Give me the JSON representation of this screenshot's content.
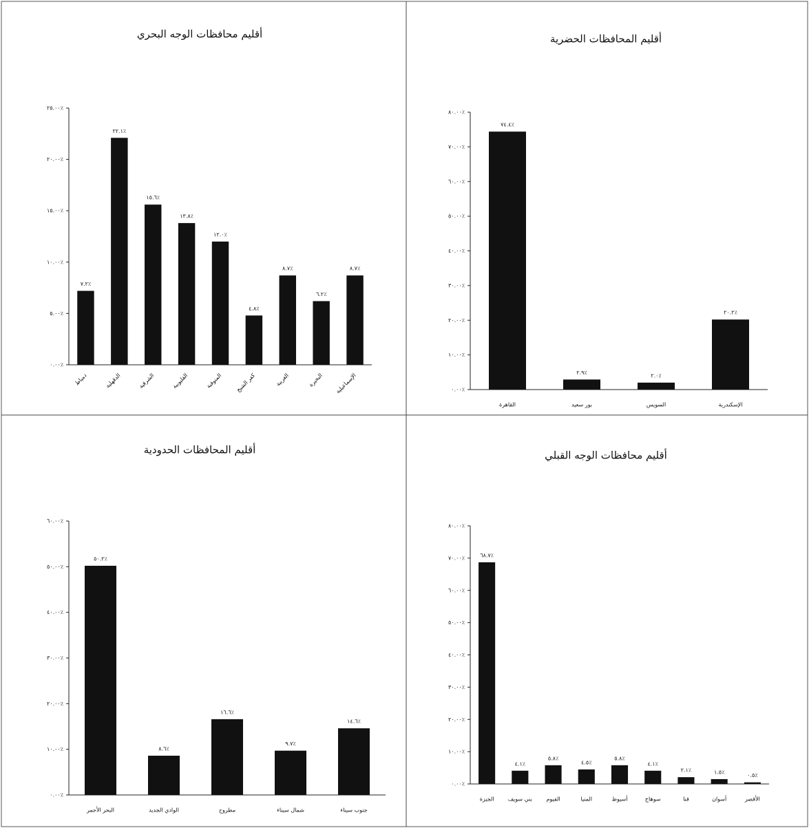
{
  "chart_data": [
    {
      "type": "bar",
      "title": "أقليم محافظات الوجه البحري",
      "categories": [
        "دمياط",
        "الدقهلية",
        "الشرقية",
        "القليوبية",
        "المنوفية",
        "كفر الشيخ",
        "الغربية",
        "البحيرة",
        "الإسماعيلية"
      ],
      "values": [
        7.2,
        22.1,
        15.6,
        13.8,
        12.0,
        4.8,
        8.7,
        6.2,
        8.7
      ],
      "value_labels": [
        "٧.٢٪",
        "٢٢.١٪",
        "١٥.٦٪",
        "١٣.٨٪",
        "١٢.٠٪",
        "٤.٨٪",
        "٨.٧٪",
        "٦.٢٪",
        "٨.٧٪"
      ],
      "color": "#111111",
      "ylim": [
        0,
        25
      ],
      "yticks": [
        {
          "value": 0,
          "label": "٠.٠٠٪"
        },
        {
          "value": 5,
          "label": "٥.٠٠٪"
        },
        {
          "value": 10,
          "label": "١٠.٠٠٪"
        },
        {
          "value": 15,
          "label": "١٥.٠٠٪"
        },
        {
          "value": 20,
          "label": "٢٠.٠٠٪"
        },
        {
          "value": 25,
          "label": "٢٥.٠٠٪"
        }
      ]
    },
    {
      "type": "bar",
      "title": "أقليم المحافظات الحضرية",
      "categories": [
        "القاهرة",
        "بور سعيد",
        "السويس",
        "الإسكندرية"
      ],
      "values": [
        74.4,
        2.9,
        2.0,
        20.2
      ],
      "value_labels": [
        "٧٤.٤٪",
        "٢.٩٪",
        "٢.٠٪",
        "٢٠.٢٪"
      ],
      "color": "#111111",
      "ylim": [
        0,
        80
      ],
      "yticks": [
        {
          "value": 0,
          "label": "٠.٠٠٪"
        },
        {
          "value": 10,
          "label": "١٠.٠٠٪"
        },
        {
          "value": 20,
          "label": "٢٠.٠٠٪"
        },
        {
          "value": 30,
          "label": "٣٠.٠٠٪"
        },
        {
          "value": 40,
          "label": "٤٠.٠٠٪"
        },
        {
          "value": 50,
          "label": "٥٠.٠٠٪"
        },
        {
          "value": 60,
          "label": "٦٠.٠٠٪"
        },
        {
          "value": 70,
          "label": "٧٠.٠٠٪"
        },
        {
          "value": 80,
          "label": "٨٠.٠٠٪"
        }
      ]
    },
    {
      "type": "bar",
      "title": "أقليم المحافظات الحدودية",
      "categories": [
        "البحر الأحمر",
        "الوادي الجديد",
        "مطروح",
        "شمال سيناء",
        "جنوب سيناء"
      ],
      "values": [
        50.2,
        8.6,
        16.6,
        9.7,
        14.6
      ],
      "value_labels": [
        "٥٠.٢٪",
        "٨.٦٪",
        "١٦.٦٪",
        "٩.٧٪",
        "١٤.٦٪"
      ],
      "color": "#111111",
      "ylim": [
        0,
        60
      ],
      "yticks": [
        {
          "value": 0,
          "label": "٠.٠٠٪"
        },
        {
          "value": 10,
          "label": "١٠.٠٠٪"
        },
        {
          "value": 20,
          "label": "٢٠.٠٠٪"
        },
        {
          "value": 30,
          "label": "٣٠.٠٠٪"
        },
        {
          "value": 40,
          "label": "٤٠.٠٠٪"
        },
        {
          "value": 50,
          "label": "٥٠.٠٠٪"
        },
        {
          "value": 60,
          "label": "٦٠.٠٠٪"
        }
      ]
    },
    {
      "type": "bar",
      "title": "أقليم محافظات الوجه القبلي",
      "categories": [
        "الجيزة",
        "بني سويف",
        "الفيوم",
        "المنيا",
        "أسيوط",
        "سوهاج",
        "قنا",
        "أسوان",
        "الأقصر"
      ],
      "values": [
        68.7,
        4.1,
        5.8,
        4.5,
        5.8,
        4.1,
        2.1,
        1.5,
        0.5
      ],
      "value_labels": [
        "٦٨.٧٪",
        "٤.١٪",
        "٥.٨٪",
        "٤.٥٪",
        "٥.٨٪",
        "٤.١٪",
        "٢.١٪",
        "١.٥٪",
        "٠.٥٪"
      ],
      "color": "#111111",
      "ylim": [
        0,
        80
      ],
      "yticks": [
        {
          "value": 0,
          "label": "٠.٠٠٪"
        },
        {
          "value": 10,
          "label": "١٠.٠٠٪"
        },
        {
          "value": 20,
          "label": "٢٠.٠٠٪"
        },
        {
          "value": 30,
          "label": "٣٠.٠٠٪"
        },
        {
          "value": 40,
          "label": "٤٠.٠٠٪"
        },
        {
          "value": 50,
          "label": "٥٠.٠٠٪"
        },
        {
          "value": 60,
          "label": "٦٠.٠٠٪"
        },
        {
          "value": 70,
          "label": "٧٠.٠٠٪"
        },
        {
          "value": 80,
          "label": "٨٠.٠٠٪"
        }
      ]
    }
  ]
}
